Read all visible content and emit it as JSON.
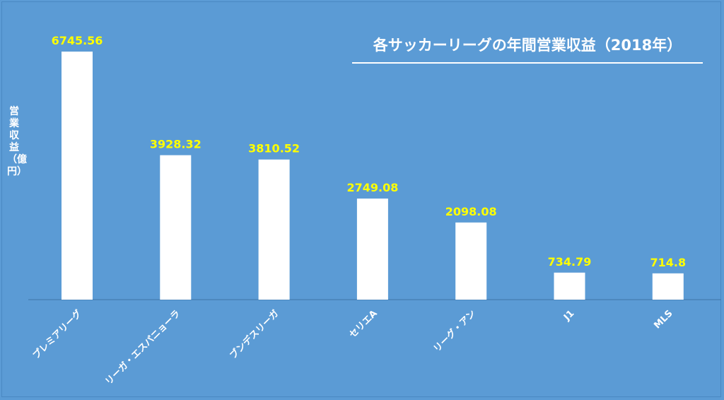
{
  "chart_data": {
    "type": "bar",
    "title": "各サッカーリーグの年間営業収益（2018年）",
    "ylabel": "営業収益（億円）",
    "xlabel": "",
    "categories": [
      "プレミアリーグ",
      "リーガ・エスパニョーラ",
      "ブンデスリーガ",
      "セリエA",
      "リーグ・アン",
      "J1",
      "MLS"
    ],
    "values": [
      6745.56,
      3928.32,
      3810.52,
      2749.08,
      2098.08,
      734.79,
      714.8
    ],
    "value_labels": [
      "6745.56",
      "3928.32",
      "3810.52",
      "2749.08",
      "2098.08",
      "734.79",
      "714.8"
    ],
    "ylim": [
      0,
      6745.56
    ],
    "grid": false,
    "legend": "none",
    "colors": {
      "background": "#5b9bd5",
      "bar": "#ffffff",
      "value_label": "#ffff00",
      "text": "#ffffff"
    }
  }
}
